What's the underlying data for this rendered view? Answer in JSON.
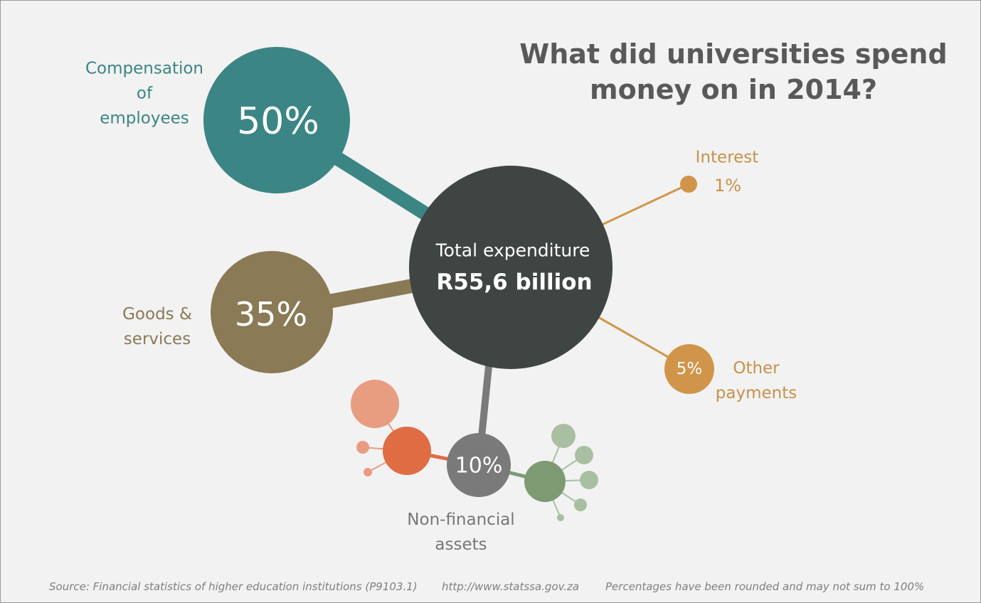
{
  "header": {
    "title": "What did universities spend money on in 2014?"
  },
  "center": {
    "label": "Total expenditure",
    "value": "R55,6 billion"
  },
  "items": [
    {
      "label_lines": [
        "Compensation",
        "of",
        "employees"
      ],
      "value": "50%"
    },
    {
      "label_lines": [
        "Goods &",
        "services"
      ],
      "value": "35%"
    },
    {
      "label_lines": [
        "Non-financial",
        "assets"
      ],
      "value": "10%"
    },
    {
      "label_lines": [
        "Other",
        "payments"
      ],
      "value": "5%"
    },
    {
      "label_lines": [
        "Interest"
      ],
      "value": "1%"
    }
  ],
  "footer": {
    "source": "Source: Financial statistics of higher education institutions (P9103.1)",
    "url": "http://www.statssa.gov.za",
    "note": "Percentages have been rounded and may not sum to 100%"
  }
}
